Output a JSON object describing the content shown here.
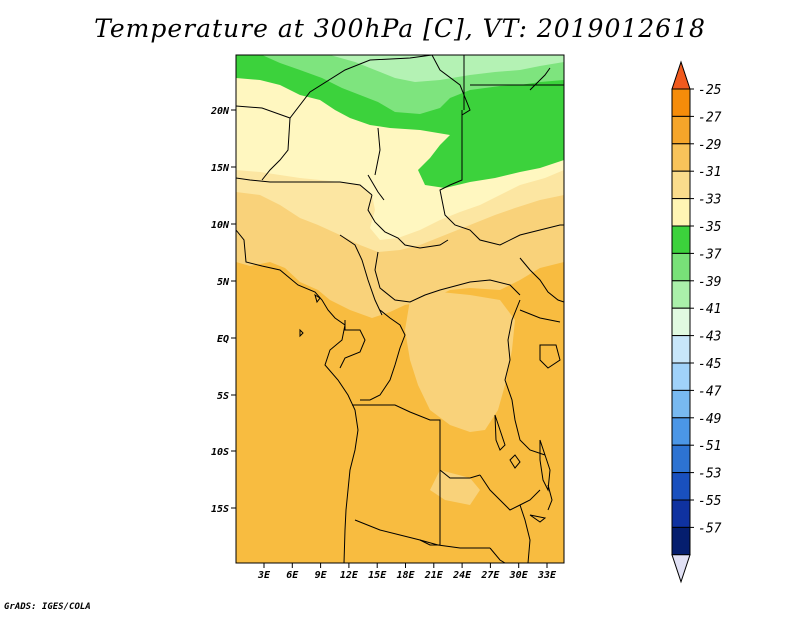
{
  "title": "Temperature at 300hPa [C], VT: 2019012618",
  "credit": "GrADS: IGES/COLA",
  "map": {
    "lat_labels": [
      "20N",
      "15N",
      "10N",
      "5N",
      "EQ",
      "5S",
      "10S",
      "15S"
    ],
    "lon_labels": [
      "3E",
      "6E",
      "9E",
      "12E",
      "15E",
      "18E",
      "21E",
      "24E",
      "27E",
      "30E",
      "33E"
    ],
    "lat_range": [
      -20,
      24.5
    ],
    "lon_range": [
      0,
      35
    ]
  },
  "colorbar": {
    "labels": [
      "-25",
      "-27",
      "-29",
      "-31",
      "-33",
      "-35",
      "-37",
      "-39",
      "-41",
      "-43",
      "-45",
      "-47",
      "-49",
      "-51",
      "-53",
      "-55",
      "-57"
    ],
    "colors": [
      "#f05a1e",
      "#f58c0a",
      "#f5a52a",
      "#f8c35a",
      "#fadc8c",
      "#fff5b4",
      "#3cd23c",
      "#78e178",
      "#aaf0aa",
      "#e1fae1",
      "#c8e6fa",
      "#a0d2fa",
      "#78b9f0",
      "#4b96e6",
      "#2d73d2",
      "#1950be",
      "#0f32a0",
      "#051e6e",
      "#e1e1f5"
    ]
  }
}
